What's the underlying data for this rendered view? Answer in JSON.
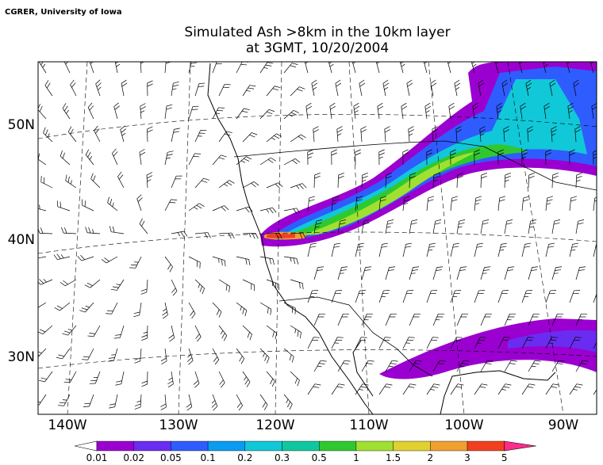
{
  "header": {
    "credit": "CGRER, University of Iowa",
    "title_line1": "Simulated Ash >8km in the 10km layer",
    "title_line2": "at 3GMT, 10/20/2004"
  },
  "map": {
    "lat_labels": [
      "50N",
      "40N",
      "30N"
    ],
    "lon_labels": [
      "140W",
      "130W",
      "120W",
      "110W",
      "100W",
      "90W"
    ]
  },
  "colorbar": {
    "levels": [
      0.01,
      0.02,
      0.05,
      0.1,
      0.2,
      0.3,
      0.5,
      1,
      1.5,
      2,
      3,
      5
    ],
    "colors": [
      "#9a00d0",
      "#6a2cf0",
      "#2f5cff",
      "#0a9cf0",
      "#10c8d8",
      "#10c8a0",
      "#30c830",
      "#a0e030",
      "#e0d030",
      "#f0a030",
      "#f04020"
    ],
    "under_color": "#ffffff",
    "over_color": "#ff2a8a"
  }
}
